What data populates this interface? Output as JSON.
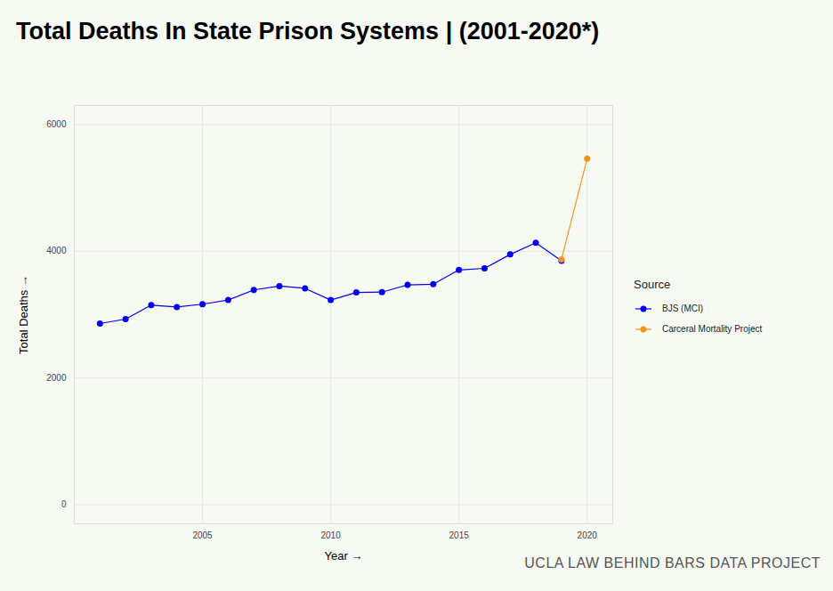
{
  "chart_data": {
    "type": "line",
    "title": "Total Deaths In State Prison Systems | (2001-2020*)",
    "x_label": "Year",
    "y_label": "Total Deaths",
    "legend_title": "Source",
    "caption": "UCLA LAW BEHIND BARS DATA PROJECT",
    "x": [
      2001,
      2002,
      2003,
      2004,
      2005,
      2006,
      2007,
      2008,
      2009,
      2010,
      2011,
      2012,
      2013,
      2014,
      2015,
      2016,
      2017,
      2018,
      2019,
      2020
    ],
    "series": [
      {
        "name": "BJS (MCI)",
        "color": "#0000ee",
        "marker": "circle",
        "line_style": "solid",
        "values": [
          2860,
          2930,
          3150,
          3120,
          3165,
          3230,
          3390,
          3450,
          3415,
          3230,
          3350,
          3355,
          3470,
          3480,
          3705,
          3730,
          3950,
          4135,
          3850,
          null
        ]
      },
      {
        "name": "Carceral Mortality Project",
        "color": "#f7931e",
        "marker": "circle",
        "line_style": "solid",
        "values": [
          null,
          null,
          null,
          null,
          null,
          null,
          null,
          null,
          null,
          null,
          null,
          null,
          null,
          null,
          null,
          null,
          null,
          null,
          3870,
          5460
        ]
      }
    ],
    "xlim": [
      2000,
      2021
    ],
    "xticks": [
      2005,
      2010,
      2015,
      2020
    ],
    "ylim": [
      -300,
      6300
    ],
    "yticks": [
      0,
      2000,
      4000,
      6000
    ],
    "grid": true,
    "legend": "right"
  }
}
